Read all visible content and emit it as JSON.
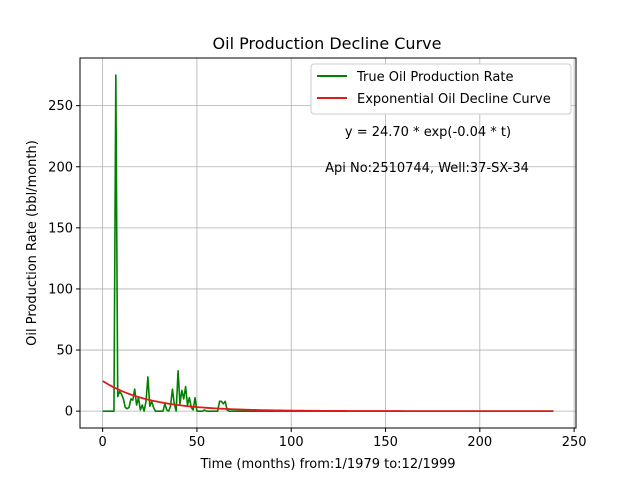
{
  "chart_data": {
    "type": "line",
    "title": "Oil Production Decline Curve",
    "xlabel": "Time (months) from:1/1979 to:12/1999",
    "ylabel": "Oil Production Rate (bbl/month)",
    "xlim": [
      -12,
      251
    ],
    "ylim": [
      -13.8,
      289
    ],
    "xticks": [
      0,
      50,
      100,
      150,
      200,
      250
    ],
    "yticks": [
      0,
      50,
      100,
      150,
      200,
      250
    ],
    "grid": true,
    "legend_position": "top-right",
    "annotations": [
      "y = 24.70 * exp(-0.04 * t)",
      "Api No:2510744, Well:37-SX-34"
    ],
    "series": [
      {
        "name": "True Oil Production Rate",
        "color": "#008000",
        "x": [
          0,
          1,
          2,
          3,
          4,
          5,
          6,
          7,
          8,
          9,
          10,
          11,
          12,
          13,
          14,
          15,
          16,
          17,
          18,
          19,
          20,
          21,
          22,
          23,
          24,
          25,
          26,
          27,
          28,
          29,
          30,
          31,
          32,
          33,
          34,
          35,
          36,
          37,
          38,
          39,
          40,
          41,
          42,
          43,
          44,
          45,
          46,
          47,
          48,
          49,
          50,
          51,
          52,
          53,
          54,
          55,
          56,
          57,
          58,
          59,
          60,
          61,
          62,
          63,
          64,
          65,
          66,
          67,
          68,
          69,
          70,
          80,
          90,
          100,
          110,
          120,
          130,
          140,
          150,
          160,
          170,
          180,
          190,
          200,
          210,
          220,
          230,
          239
        ],
        "y": [
          0,
          0,
          0,
          0,
          0,
          0,
          0,
          275,
          12,
          16,
          14,
          10,
          3,
          2,
          3,
          10,
          9,
          18,
          5,
          11,
          1,
          5,
          0,
          8,
          28,
          4,
          8,
          3,
          0,
          0,
          0,
          0,
          0,
          6,
          1,
          0,
          4,
          18,
          6,
          0,
          33,
          6,
          17,
          10,
          20,
          5,
          11,
          3,
          1,
          11,
          0,
          0,
          0,
          0,
          1,
          0,
          0,
          0,
          0,
          0,
          0,
          0,
          8,
          8,
          6,
          8,
          1,
          0,
          0,
          0,
          0,
          0,
          0,
          0,
          0,
          0,
          0,
          0,
          0,
          0,
          0,
          0,
          0,
          0,
          0,
          0,
          0,
          0
        ]
      },
      {
        "name": "Exponential Oil Decline Curve",
        "color": "#e31a1c",
        "model": {
          "a": 24.7,
          "b": 0.04,
          "x_start": 0,
          "x_end": 239
        }
      }
    ]
  }
}
